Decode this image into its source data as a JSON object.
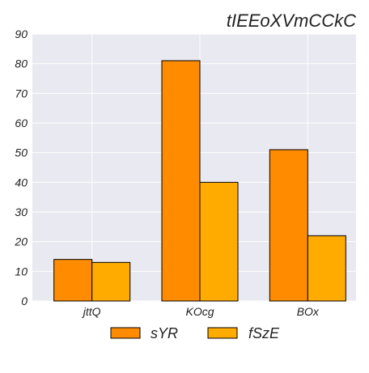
{
  "chart_data": {
    "type": "bar",
    "title": "tIEEoXVmCCkC",
    "xlabel": "",
    "ylabel": "",
    "categories": [
      "jttQ",
      "KOcg",
      "BOx"
    ],
    "series": [
      {
        "name": "sYR",
        "values": [
          14,
          81,
          51
        ],
        "color": "#ff8c00"
      },
      {
        "name": "fSzE",
        "values": [
          13,
          40,
          22
        ],
        "color": "#ffab00"
      }
    ],
    "ylim": [
      0,
      90
    ],
    "yticks": [
      0,
      10,
      20,
      30,
      40,
      50,
      60,
      70,
      80,
      90
    ],
    "grid": true,
    "legend_position": "bottom-center",
    "background": "#e9e9f1",
    "bar_edge_color": "#000000"
  }
}
